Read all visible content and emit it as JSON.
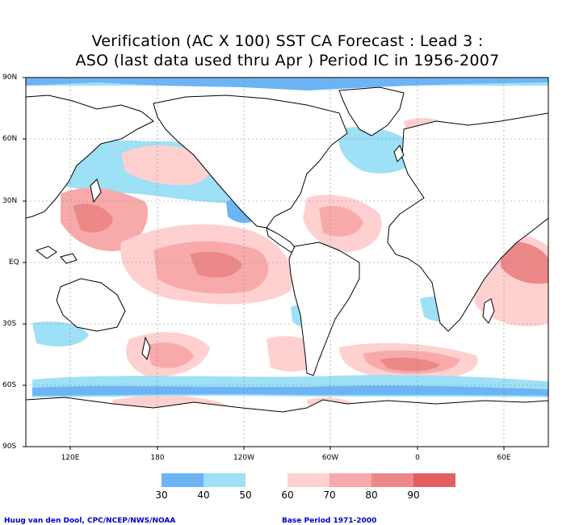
{
  "title": {
    "line1": "Verification (AC X 100) SST CA Forecast : Lead 3 :",
    "line2": "ASO (last data used thru Apr ) Period IC in 1956-2007"
  },
  "axes": {
    "lat_labels": [
      "90N",
      "60N",
      "30N",
      "EQ",
      "30S",
      "60S",
      "90S"
    ],
    "lon_labels": [
      "120E",
      "180",
      "120W",
      "60W",
      "0",
      "60E"
    ]
  },
  "legend": {
    "labels": [
      "30",
      "40",
      "50",
      "60",
      "70",
      "80",
      "90"
    ],
    "colors": [
      "#6cb4f5",
      "#9ee0f5",
      "#ffffff",
      "#ffd0d0",
      "#f8aaaa",
      "#ec8888",
      "#e06060"
    ]
  },
  "footer": {
    "left": "Huug van den Dool, CPC/NCEP/NWS/NOAA",
    "right": "Base Period 1971-2000"
  },
  "colors": {
    "blue_dark": "#6cb4f5",
    "blue_light": "#9ee0f5",
    "pink_light": "#ffd0d0",
    "pink_mid": "#f8aaaa",
    "pink_dark": "#ec8888"
  }
}
